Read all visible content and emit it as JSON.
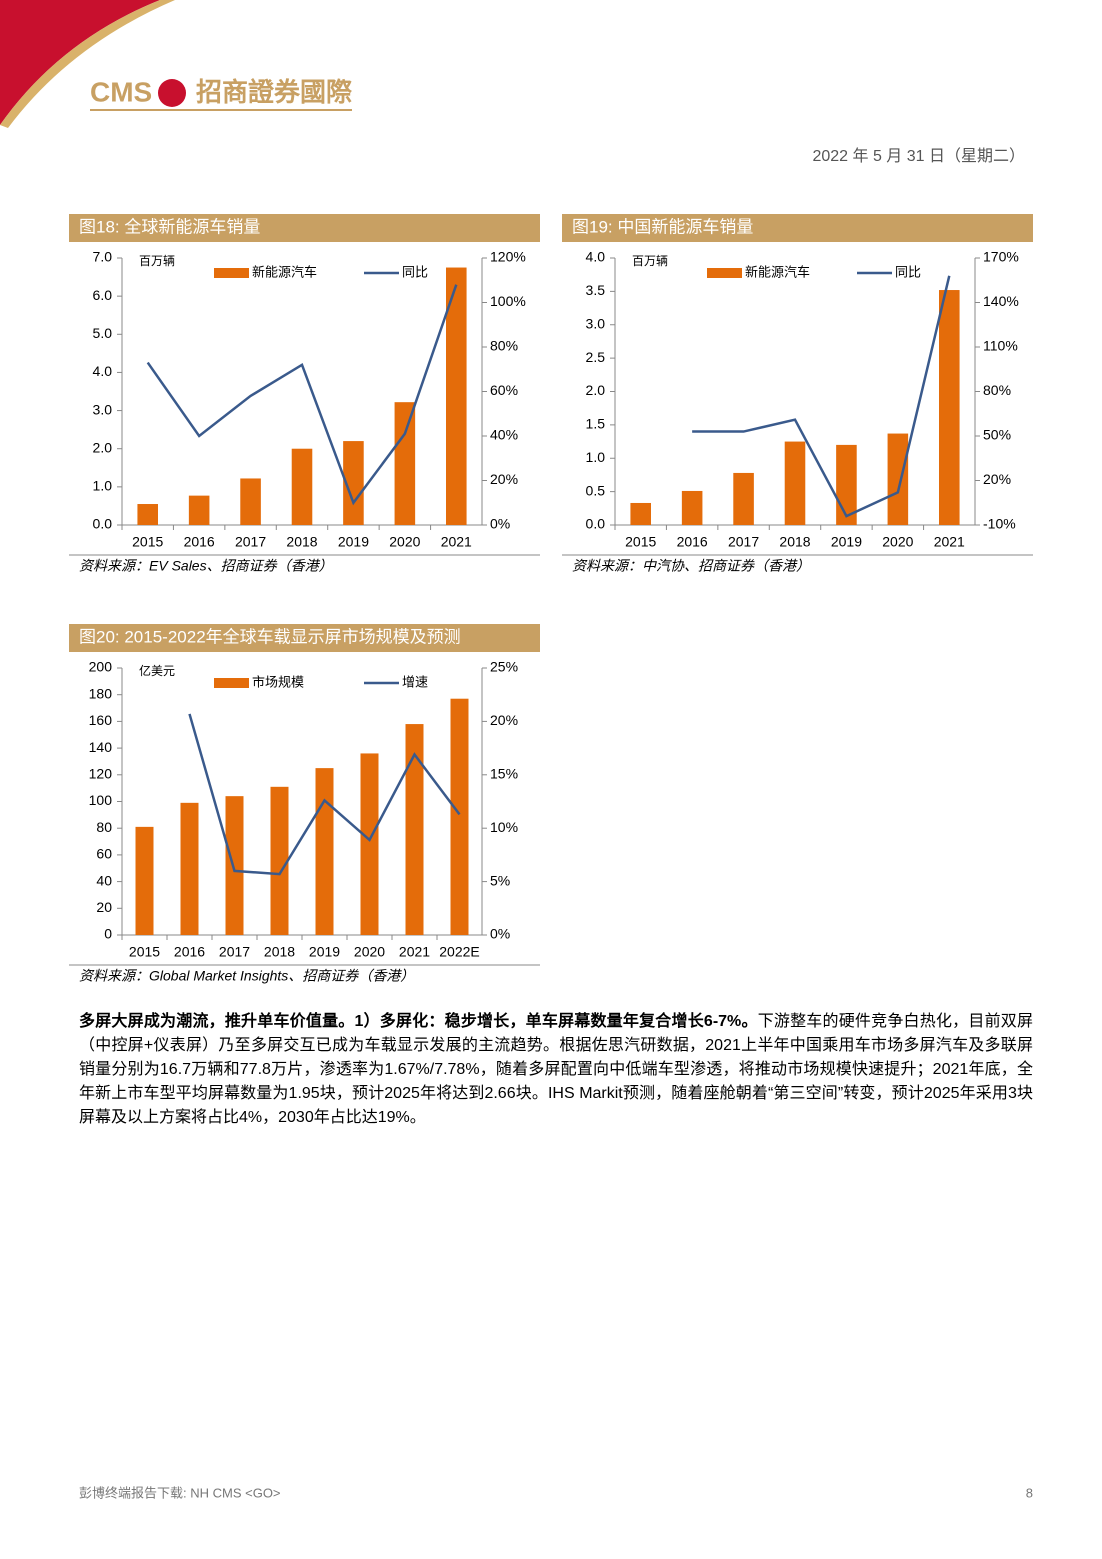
{
  "header": {
    "logo": "CMS",
    "company": "招商證券國際",
    "date": "2022 年 5 月 31 日（星期二）"
  },
  "chart_data": [
    {
      "type": "combo",
      "title": "图18:  全球新能源车销量",
      "y_label": "百万辆",
      "source": "资料来源：EV Sales、招商证券（香港）",
      "categories": [
        "2015",
        "2016",
        "2017",
        "2018",
        "2019",
        "2020",
        "2021"
      ],
      "series": [
        {
          "name": "新能源汽车",
          "color": "#e46c0a",
          "values": [
            0.55,
            0.77,
            1.22,
            2.0,
            2.2,
            3.22,
            6.75
          ]
        },
        {
          "name": "同比",
          "color": "#3a5a8c",
          "axis": "y2",
          "values": [
            73,
            40,
            58,
            72,
            10,
            41,
            108
          ]
        }
      ],
      "ylim": [
        0,
        7
      ],
      "yticks": [
        {
          "value": 0,
          "label": "0.0"
        },
        {
          "value": 1,
          "label": "1.0"
        },
        {
          "value": 2,
          "label": "2.0"
        },
        {
          "value": 3,
          "label": "3.0"
        },
        {
          "value": 4,
          "label": "4.0"
        },
        {
          "value": 5,
          "label": "5.0"
        },
        {
          "value": 6,
          "label": "6.0"
        },
        {
          "value": 7,
          "label": "7.0"
        }
      ],
      "y2lim": [
        0,
        120
      ],
      "y2ticks": [
        {
          "value": 0,
          "label": "0%"
        },
        {
          "value": 20,
          "label": "20%"
        },
        {
          "value": 40,
          "label": "40%"
        },
        {
          "value": 60,
          "label": "60%"
        },
        {
          "value": 80,
          "label": "80%"
        },
        {
          "value": 100,
          "label": "100%"
        },
        {
          "value": 120,
          "label": "120%"
        }
      ]
    },
    {
      "type": "combo",
      "title": "图19:  中国新能源车销量",
      "y_label": "百万辆",
      "source": "资料来源：中汽协、招商证券（香港）",
      "categories": [
        "2015",
        "2016",
        "2017",
        "2018",
        "2019",
        "2020",
        "2021"
      ],
      "series": [
        {
          "name": "新能源汽车",
          "color": "#e46c0a",
          "values": [
            0.33,
            0.51,
            0.78,
            1.25,
            1.2,
            1.37,
            3.52
          ]
        },
        {
          "name": "同比",
          "color": "#3a5a8c",
          "axis": "y2",
          "values": [
            null,
            53,
            53,
            61,
            -4,
            12,
            158
          ]
        }
      ],
      "ylim": [
        0,
        4
      ],
      "yticks": [
        {
          "value": 0,
          "label": "0.0"
        },
        {
          "value": 0.5,
          "label": "0.5"
        },
        {
          "value": 1,
          "label": "1.0"
        },
        {
          "value": 1.5,
          "label": "1.5"
        },
        {
          "value": 2,
          "label": "2.0"
        },
        {
          "value": 2.5,
          "label": "2.5"
        },
        {
          "value": 3,
          "label": "3.0"
        },
        {
          "value": 3.5,
          "label": "3.5"
        },
        {
          "value": 4,
          "label": "4.0"
        }
      ],
      "y2lim": [
        -10,
        170
      ],
      "y2ticks": [
        {
          "value": -10,
          "label": "-10%"
        },
        {
          "value": 20,
          "label": "20%"
        },
        {
          "value": 50,
          "label": "50%"
        },
        {
          "value": 80,
          "label": "80%"
        },
        {
          "value": 110,
          "label": "110%"
        },
        {
          "value": 140,
          "label": "140%"
        },
        {
          "value": 170,
          "label": "170%"
        }
      ]
    },
    {
      "type": "combo",
      "title": "图20:  2015-2022年全球车载显示屏市场规模及预测",
      "y_label": "亿美元",
      "source": "资料来源：Global Market Insights、招商证券（香港）",
      "categories": [
        "2015",
        "2016",
        "2017",
        "2018",
        "2019",
        "2020",
        "2021",
        "2022E"
      ],
      "series": [
        {
          "name": "市场规模",
          "color": "#e46c0a",
          "values": [
            81,
            99,
            104,
            111,
            125,
            136,
            158,
            177
          ]
        },
        {
          "name": "增速",
          "color": "#3a5a8c",
          "axis": "y2",
          "values": [
            null,
            20.7,
            6,
            5.7,
            12.6,
            8.9,
            16.9,
            11.3
          ]
        }
      ],
      "ylim": [
        0,
        200
      ],
      "yticks": [
        0,
        20,
        40,
        60,
        80,
        100,
        120,
        140,
        160,
        180,
        200
      ],
      "y2lim": [
        0,
        25
      ],
      "y2ticks": [
        {
          "value": 0,
          "label": "0%"
        },
        {
          "value": 5,
          "label": "5%"
        },
        {
          "value": 10,
          "label": "10%"
        },
        {
          "value": 15,
          "label": "15%"
        },
        {
          "value": 20,
          "label": "20%"
        },
        {
          "value": 25,
          "label": "25%"
        }
      ]
    }
  ],
  "body": {
    "bold": "多屏大屏成为潮流，推升单车价值量。1）多屏化：稳步增长，单车屏幕数量年复合增长6-7%。",
    "text": "下游整车的硬件竞争白热化，目前双屏（中控屏+仪表屏）乃至多屏交互已成为车载显示发展的主流趋势。根据佐思汽研数据，2021上半年中国乘用车市场多屏汽车及多联屏销量分别为16.7万辆和77.8万片，渗透率为1.67%/7.78%，随着多屏配置向中低端车型渗透，将推动市场规模快速提升；2021年底，全年新上市车型平均屏幕数量为1.95块，预计2025年将达到2.66块。IHS Markit预测，随着座舱朝着“第三空间”转变，预计2025年采用3块屏幕及以上方案将占比4%，2030年占比达19%。"
  },
  "footer": {
    "text": "彭博终端报告下载: NH CMS <GO>",
    "page": "8"
  }
}
